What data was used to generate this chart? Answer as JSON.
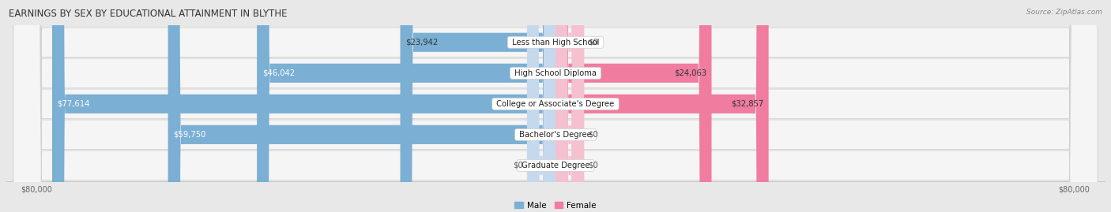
{
  "title": "EARNINGS BY SEX BY EDUCATIONAL ATTAINMENT IN BLYTHE",
  "source": "Source: ZipAtlas.com",
  "categories": [
    "Less than High School",
    "High School Diploma",
    "College or Associate's Degree",
    "Bachelor's Degree",
    "Graduate Degree"
  ],
  "male_values": [
    23942,
    46042,
    77614,
    59750,
    0
  ],
  "female_values": [
    0,
    24063,
    32857,
    0,
    0
  ],
  "male_color": "#7bafd4",
  "female_color": "#f07ca0",
  "male_color_light": "#c5d9ee",
  "female_color_light": "#f5c0d0",
  "max_value": 80000,
  "background_color": "#e8e8e8",
  "row_bg_color": "#f5f5f5",
  "title_fontsize": 8.5,
  "label_fontsize": 7.2,
  "tick_fontsize": 7,
  "legend_fontsize": 7.5
}
